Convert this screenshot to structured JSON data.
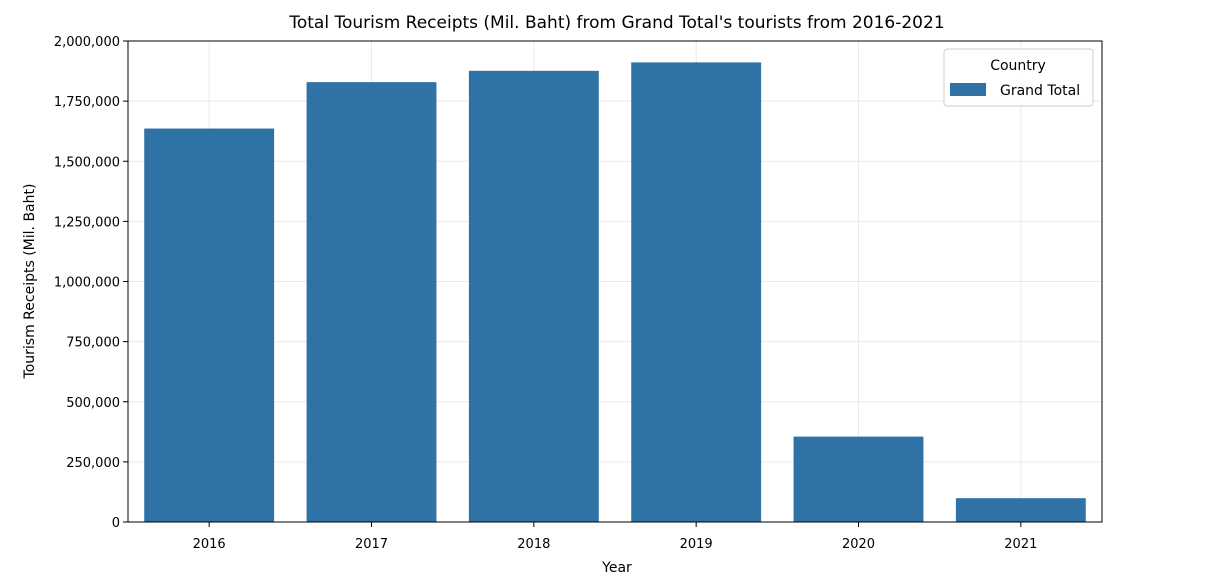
{
  "chart_data": {
    "type": "bar",
    "title": "Total Tourism Receipts (Mil. Baht) from Grand Total's tourists from 2016-2021",
    "xlabel": "Year",
    "ylabel": "Tourism Receipts (Mil. Baht)",
    "categories": [
      "2016",
      "2017",
      "2018",
      "2019",
      "2020",
      "2021"
    ],
    "series": [
      {
        "name": "Grand Total",
        "values": [
          1636000,
          1829000,
          1876000,
          1911000,
          355000,
          99000
        ]
      }
    ],
    "ylim": [
      0,
      2000000
    ],
    "yticks": [
      0,
      250000,
      500000,
      750000,
      1000000,
      1250000,
      1500000,
      1750000,
      2000000
    ],
    "ytick_labels": [
      "0",
      "250,000",
      "500,000",
      "750,000",
      "1,000,000",
      "1,250,000",
      "1,500,000",
      "1,750,000",
      "2,000,000"
    ],
    "grid": true,
    "legend": {
      "title": "Country",
      "placement": "top-right"
    },
    "colors": {
      "bar": "#2e72a6",
      "grid": "#e9e9e9",
      "axis": "#000000"
    }
  }
}
